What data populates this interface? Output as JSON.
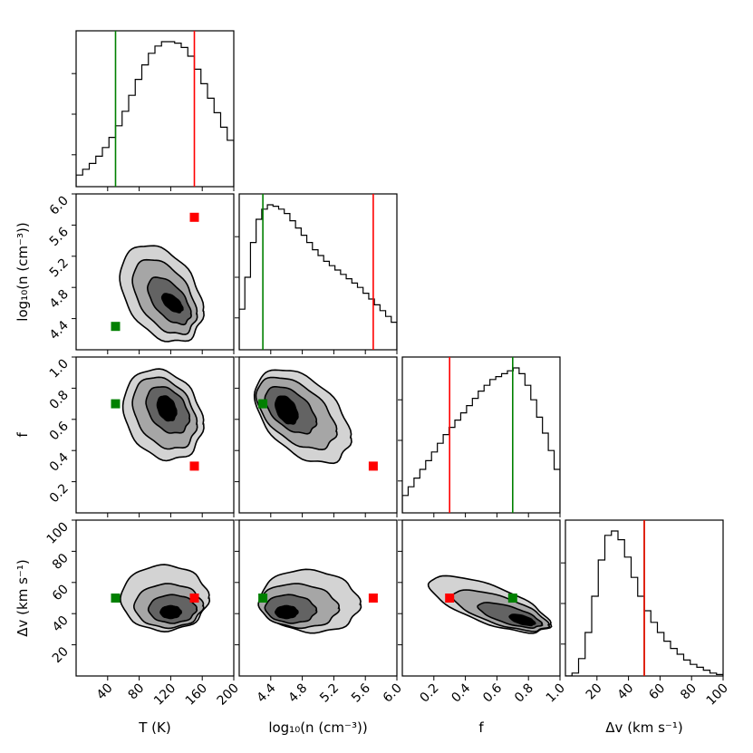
{
  "chart_data": {
    "type": "corner",
    "parameters": [
      {
        "key": "T",
        "label": "T (K)",
        "range": [
          0,
          200
        ],
        "ticks": [
          40,
          80,
          120,
          160,
          200
        ]
      },
      {
        "key": "logn",
        "label": "log₁₀(n (cm⁻³))",
        "range": [
          4.0,
          6.0
        ],
        "ticks": [
          4.4,
          4.8,
          5.2,
          5.6,
          6.0
        ],
        "tick_labels": [
          "4.4",
          "4.8",
          "5.2",
          "5.6",
          "6.0"
        ]
      },
      {
        "key": "f",
        "label": "f",
        "range": [
          0.0,
          1.0
        ],
        "ticks": [
          0.2,
          0.4,
          0.6,
          0.8,
          1.0
        ],
        "tick_labels": [
          "0.2",
          "0.4",
          "0.6",
          "0.8",
          "1.0"
        ]
      },
      {
        "key": "dv",
        "label": "Δv (km s⁻¹)",
        "range": [
          0,
          100
        ],
        "ticks": [
          20,
          40,
          60,
          80,
          100
        ]
      }
    ],
    "markers": {
      "green": {
        "color": "#008000",
        "T": 50,
        "logn": 4.3,
        "f": 0.7,
        "dv": 50
      },
      "red": {
        "color": "#ff0000",
        "T": 150,
        "logn": 5.7,
        "f": 0.3,
        "dv": 50
      }
    },
    "histograms": {
      "T": [
        0.08,
        0.12,
        0.16,
        0.21,
        0.27,
        0.34,
        0.42,
        0.52,
        0.63,
        0.74,
        0.84,
        0.92,
        0.97,
        1.0,
        1.0,
        0.99,
        0.96,
        0.9,
        0.81,
        0.71,
        0.61,
        0.51,
        0.41,
        0.32
      ],
      "logn": [
        0.28,
        0.5,
        0.74,
        0.9,
        0.97,
        1.0,
        0.99,
        0.97,
        0.94,
        0.89,
        0.84,
        0.79,
        0.74,
        0.69,
        0.65,
        0.61,
        0.58,
        0.55,
        0.52,
        0.49,
        0.46,
        0.43,
        0.39,
        0.35,
        0.31,
        0.27,
        0.23,
        0.19
      ],
      "f": [
        0.12,
        0.18,
        0.24,
        0.3,
        0.36,
        0.42,
        0.48,
        0.54,
        0.59,
        0.64,
        0.69,
        0.74,
        0.79,
        0.84,
        0.88,
        0.92,
        0.94,
        0.96,
        0.98,
        1.0,
        0.96,
        0.88,
        0.78,
        0.66,
        0.55,
        0.43,
        0.3
      ],
      "dv": [
        0.0,
        0.02,
        0.12,
        0.3,
        0.55,
        0.8,
        0.97,
        1.0,
        0.94,
        0.82,
        0.68,
        0.55,
        0.45,
        0.37,
        0.3,
        0.24,
        0.19,
        0.15,
        0.11,
        0.08,
        0.06,
        0.04,
        0.02,
        0.01
      ]
    },
    "contour_levels": 4,
    "contour_fills": [
      "#d3d3d3",
      "#a6a6a6",
      "#636363",
      "#000000"
    ],
    "pairs": [
      {
        "x": "T",
        "y": "logn",
        "levels": [
          {
            "center": [
              108,
              4.72
            ],
            "sd": [
              52,
              0.62
            ],
            "rho": -0.35
          },
          {
            "center": [
              112,
              4.68
            ],
            "sd": [
              40,
              0.48
            ],
            "rho": -0.45
          },
          {
            "center": [
              118,
              4.63
            ],
            "sd": [
              27,
              0.3
            ],
            "rho": -0.55
          },
          {
            "center": [
              122,
              4.6
            ],
            "sd": [
              13,
              0.12
            ],
            "rho": -0.6
          }
        ]
      },
      {
        "x": "T",
        "y": "f",
        "levels": [
          {
            "center": [
              110,
              0.63
            ],
            "sd": [
              50,
              0.29
            ],
            "rho": -0.2
          },
          {
            "center": [
              112,
              0.64
            ],
            "sd": [
              40,
              0.23
            ],
            "rho": -0.3
          },
          {
            "center": [
              116,
              0.66
            ],
            "sd": [
              27,
              0.15
            ],
            "rho": -0.35
          },
          {
            "center": [
              115,
              0.67
            ],
            "sd": [
              12,
              0.08
            ],
            "rho": -0.3
          }
        ]
      },
      {
        "x": "logn",
        "y": "f",
        "levels": [
          {
            "center": [
              4.8,
              0.62
            ],
            "sd": [
              0.6,
              0.3
            ],
            "rho": -0.45
          },
          {
            "center": [
              4.72,
              0.64
            ],
            "sd": [
              0.5,
              0.23
            ],
            "rho": -0.5
          },
          {
            "center": [
              4.65,
              0.66
            ],
            "sd": [
              0.32,
              0.15
            ],
            "rho": -0.5
          },
          {
            "center": [
              4.6,
              0.66
            ],
            "sd": [
              0.14,
              0.09
            ],
            "rho": -0.4
          }
        ]
      },
      {
        "x": "T",
        "y": "dv",
        "levels": [
          {
            "center": [
              112,
              50
            ],
            "sd": [
              55,
              21
            ],
            "rho": 0.0
          },
          {
            "center": [
              117,
              45
            ],
            "sd": [
              43,
              14
            ],
            "rho": 0.0
          },
          {
            "center": [
              122,
              43
            ],
            "sd": [
              30,
              9
            ],
            "rho": 0.0
          },
          {
            "center": [
              120,
              41
            ],
            "sd": [
              13,
              4
            ],
            "rho": 0.0
          }
        ]
      },
      {
        "x": "logn",
        "y": "dv",
        "levels": [
          {
            "center": [
              4.9,
              48
            ],
            "sd": [
              0.62,
              20
            ],
            "rho": -0.1
          },
          {
            "center": [
              4.75,
              45
            ],
            "sd": [
              0.5,
              14
            ],
            "rho": -0.1
          },
          {
            "center": [
              4.65,
              43
            ],
            "sd": [
              0.32,
              9
            ],
            "rho": -0.1
          },
          {
            "center": [
              4.6,
              41
            ],
            "sd": [
              0.14,
              4
            ],
            "rho": 0.0
          }
        ]
      },
      {
        "x": "f",
        "y": "dv",
        "levels": [
          {
            "center": [
              0.55,
              46
            ],
            "sd": [
              0.38,
              18
            ],
            "rho": -0.7
          },
          {
            "center": [
              0.62,
              42
            ],
            "sd": [
              0.3,
              13
            ],
            "rho": -0.7
          },
          {
            "center": [
              0.68,
              39
            ],
            "sd": [
              0.2,
              8
            ],
            "rho": -0.7
          },
          {
            "center": [
              0.76,
              36
            ],
            "sd": [
              0.08,
              3.5
            ],
            "rho": -0.6
          }
        ]
      }
    ]
  }
}
